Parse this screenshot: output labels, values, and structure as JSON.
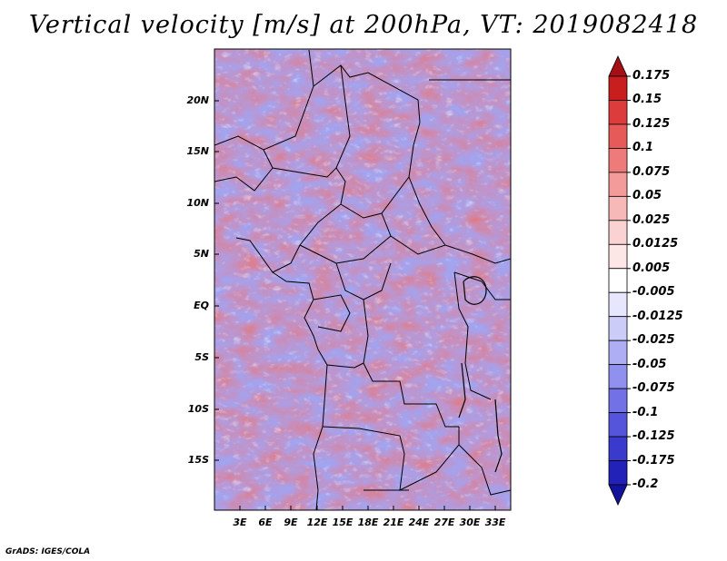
{
  "title": "Vertical velocity [m/s] at 200hPa, VT: 2019082418",
  "lat_labels": [
    "20N",
    "15N",
    "10N",
    "5N",
    "EQ",
    "5S",
    "10S",
    "15S"
  ],
  "lon_labels": [
    "3E",
    "6E",
    "9E",
    "12E",
    "15E",
    "18E",
    "21E",
    "24E",
    "27E",
    "30E",
    "33E"
  ],
  "colorbar": {
    "labels": [
      "0.175",
      "0.15",
      "0.125",
      "0.1",
      "0.075",
      "0.05",
      "0.025",
      "0.0125",
      "0.005",
      "-0.005",
      "-0.0125",
      "-0.025",
      "-0.05",
      "-0.075",
      "-0.1",
      "-0.125",
      "-0.175",
      "-0.2"
    ],
    "colors": [
      "#a50f15",
      "#c81e1e",
      "#dc3c3c",
      "#e65a5a",
      "#ee7a7a",
      "#f39a9a",
      "#f7b8b8",
      "#fad2d2",
      "#fde6e6",
      "#ffffff",
      "#e6e6fd",
      "#ccccf9",
      "#aeaef5",
      "#9090ef",
      "#7272e6",
      "#5555dc",
      "#3a3acc",
      "#2222b8",
      "#12129a"
    ]
  },
  "credit": "GrADS: IGES/COLA"
}
